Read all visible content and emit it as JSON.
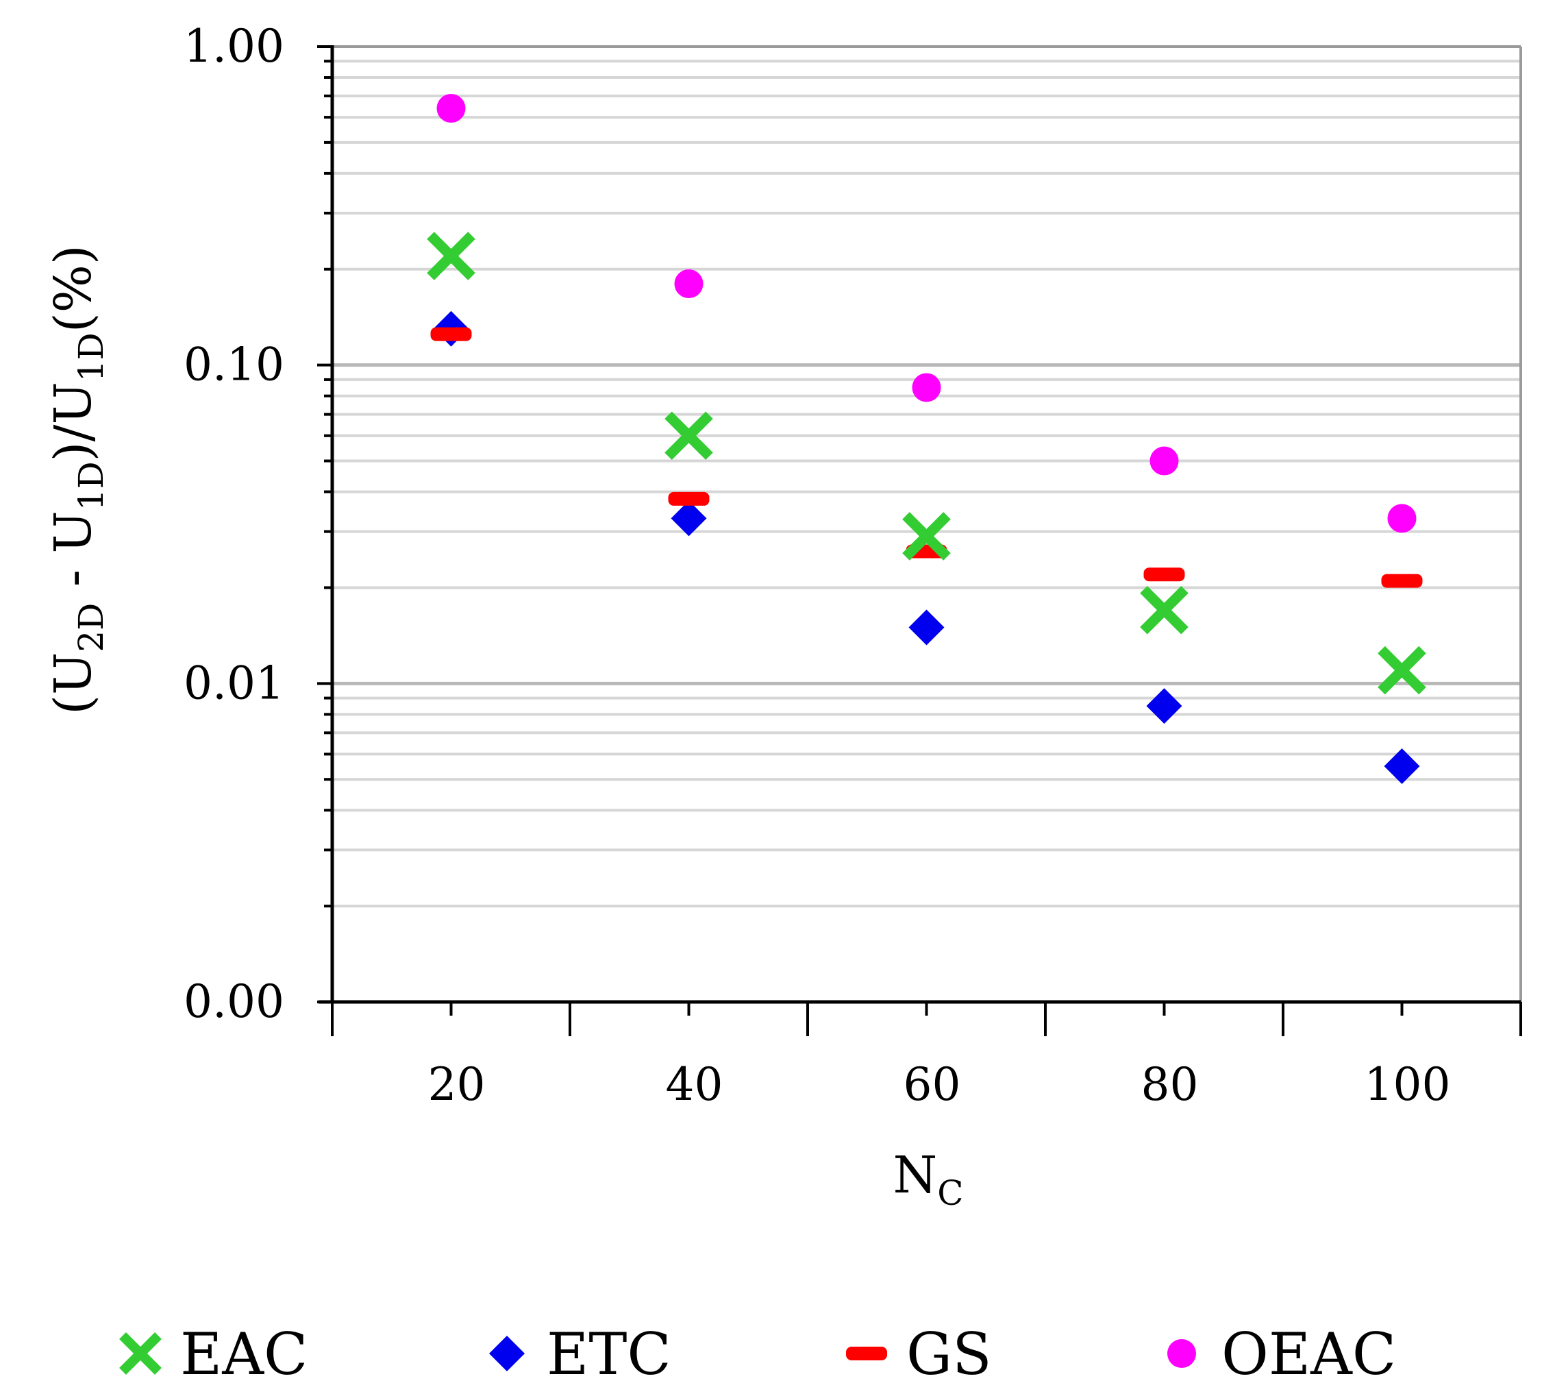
{
  "chart_data": {
    "type": "scatter",
    "title": "",
    "xlabel": "N",
    "xlabel_sub": "C",
    "ylabel_parts": [
      {
        "text": "(U",
        "sub": false
      },
      {
        "text": "2D",
        "sub": true
      },
      {
        "text": " - U",
        "sub": false
      },
      {
        "text": "1D",
        "sub": true
      },
      {
        "text": ")/U",
        "sub": false
      },
      {
        "text": "1D",
        "sub": true
      },
      {
        "text": "(%)",
        "sub": false
      }
    ],
    "y_scale": "log",
    "ylim": [
      0.001,
      1.0
    ],
    "y_ticks": [
      1.0,
      0.1,
      0.01,
      0.001
    ],
    "y_tick_labels": [
      "1.00",
      "0.10",
      "0.01",
      "0.00"
    ],
    "x_categories": [
      "20",
      "40",
      "60",
      "80",
      "100"
    ],
    "x": [
      20,
      40,
      60,
      80,
      100
    ],
    "grid": "horizontal-minor",
    "legend_position": "bottom",
    "series": [
      {
        "name": "EAC",
        "marker": "x",
        "color": "#33cc33",
        "values": [
          0.22,
          0.06,
          0.029,
          0.017,
          0.011
        ]
      },
      {
        "name": "ETC",
        "marker": "diamond",
        "color": "#0000ee",
        "values": [
          0.13,
          0.033,
          0.015,
          0.0085,
          0.0055
        ]
      },
      {
        "name": "GS",
        "marker": "dash",
        "color": "#ff0000",
        "values": [
          0.125,
          0.038,
          0.026,
          0.022,
          0.021
        ]
      },
      {
        "name": "OEAC",
        "marker": "circle",
        "color": "#ff00ff",
        "values": [
          0.64,
          0.18,
          0.085,
          0.05,
          0.033
        ]
      }
    ]
  }
}
